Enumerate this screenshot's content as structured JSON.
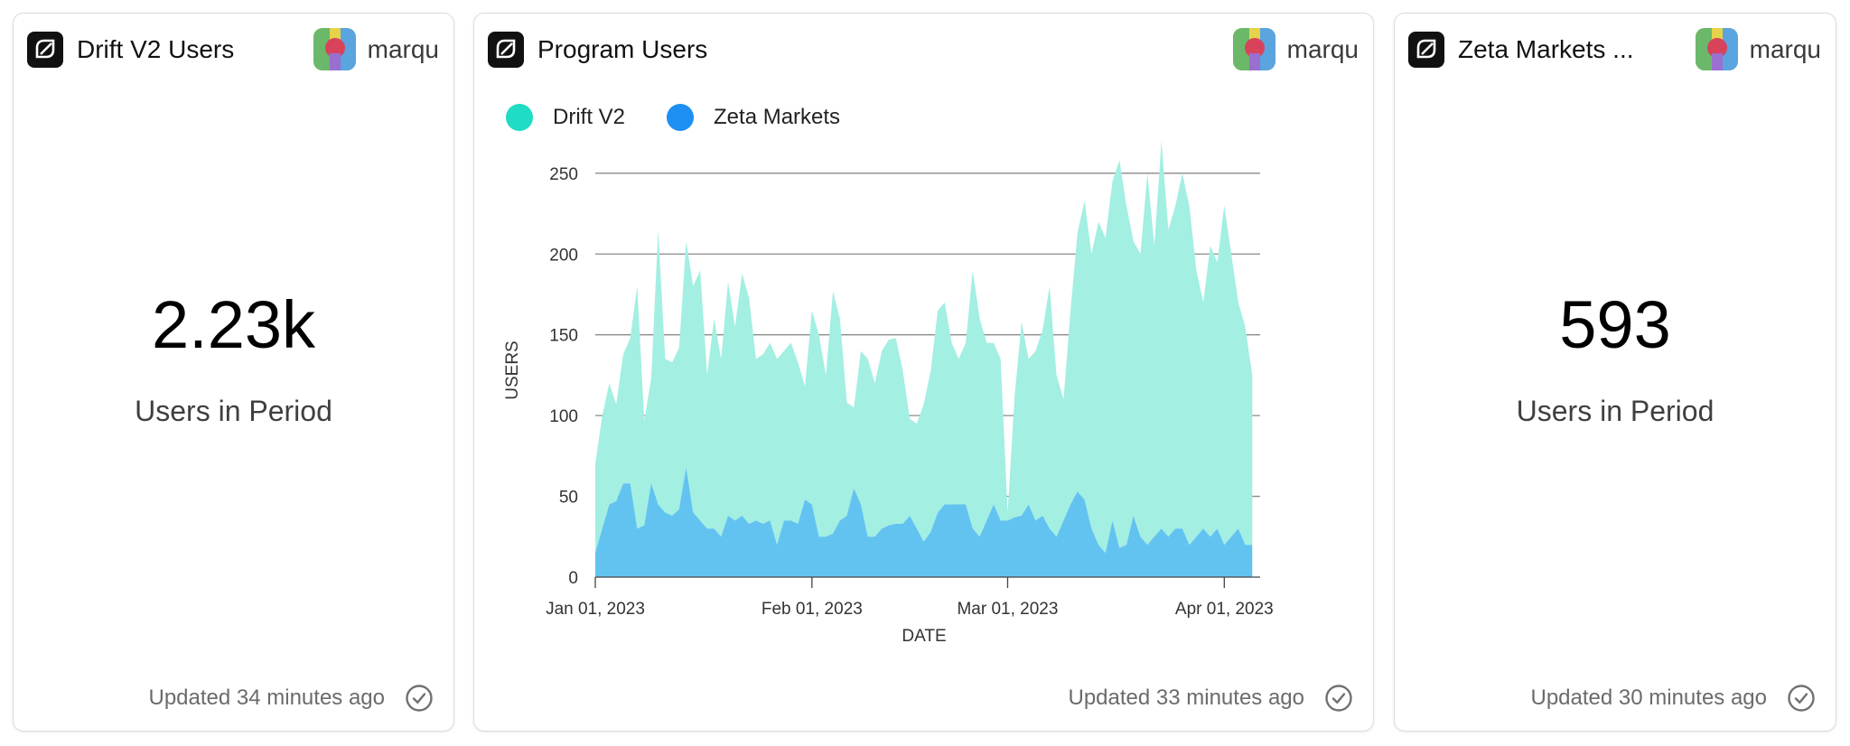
{
  "cards": [
    {
      "title": "Drift V2 Users",
      "author": "marqu",
      "value": "2.23k",
      "caption": "Users in Period",
      "updated": "Updated 34 minutes ago"
    },
    {
      "title": "Program Users",
      "author": "marqu",
      "updated": "Updated 33 minutes ago"
    },
    {
      "title": "Zeta Markets ...",
      "author": "marqu",
      "value": "593",
      "caption": "Users in Period",
      "updated": "Updated 30 minutes ago"
    }
  ],
  "chart_data": {
    "type": "area",
    "stacked": true,
    "title": "Program Users",
    "xlabel": "DATE",
    "ylabel": "USERS",
    "ylim": [
      0,
      265
    ],
    "yticks": [
      0,
      50,
      100,
      150,
      200,
      250
    ],
    "xlim": [
      "2023-01-01",
      "2023-04-06"
    ],
    "xticks": [
      {
        "date": "2023-01-01",
        "label": "Jan 01, 2023"
      },
      {
        "date": "2023-02-01",
        "label": "Feb 01, 2023"
      },
      {
        "date": "2023-03-01",
        "label": "Mar 01, 2023"
      },
      {
        "date": "2023-04-01",
        "label": "Apr 01, 2023"
      }
    ],
    "grid": true,
    "legend_position": "top-left",
    "series": [
      {
        "name": "Drift V2",
        "color": "#a3efe2",
        "legend_color": "#1fdcc4",
        "values": [
          {
            "x": "2023-01-01",
            "y": 55
          },
          {
            "x": "2023-01-02",
            "y": 70
          },
          {
            "x": "2023-01-03",
            "y": 75
          },
          {
            "x": "2023-01-04",
            "y": 60
          },
          {
            "x": "2023-01-05",
            "y": 80
          },
          {
            "x": "2023-01-06",
            "y": 90
          },
          {
            "x": "2023-01-07",
            "y": 150
          },
          {
            "x": "2023-01-08",
            "y": 65
          },
          {
            "x": "2023-01-09",
            "y": 65
          },
          {
            "x": "2023-01-10",
            "y": 170
          },
          {
            "x": "2023-01-11",
            "y": 95
          },
          {
            "x": "2023-01-12",
            "y": 95
          },
          {
            "x": "2023-01-13",
            "y": 100
          },
          {
            "x": "2023-01-14",
            "y": 140
          },
          {
            "x": "2023-01-15",
            "y": 140
          },
          {
            "x": "2023-01-16",
            "y": 155
          },
          {
            "x": "2023-01-17",
            "y": 95
          },
          {
            "x": "2023-01-18",
            "y": 130
          },
          {
            "x": "2023-01-19",
            "y": 110
          },
          {
            "x": "2023-01-20",
            "y": 145
          },
          {
            "x": "2023-01-21",
            "y": 120
          },
          {
            "x": "2023-01-22",
            "y": 150
          },
          {
            "x": "2023-01-23",
            "y": 140
          },
          {
            "x": "2023-01-24",
            "y": 100
          },
          {
            "x": "2023-01-25",
            "y": 105
          },
          {
            "x": "2023-01-26",
            "y": 110
          },
          {
            "x": "2023-01-27",
            "y": 115
          },
          {
            "x": "2023-01-28",
            "y": 105
          },
          {
            "x": "2023-01-29",
            "y": 110
          },
          {
            "x": "2023-01-30",
            "y": 100
          },
          {
            "x": "2023-01-31",
            "y": 70
          },
          {
            "x": "2023-02-01",
            "y": 120
          },
          {
            "x": "2023-02-02",
            "y": 125
          },
          {
            "x": "2023-02-03",
            "y": 100
          },
          {
            "x": "2023-02-04",
            "y": 150
          },
          {
            "x": "2023-02-05",
            "y": 125
          },
          {
            "x": "2023-02-06",
            "y": 70
          },
          {
            "x": "2023-02-07",
            "y": 50
          },
          {
            "x": "2023-02-08",
            "y": 95
          },
          {
            "x": "2023-02-09",
            "y": 110
          },
          {
            "x": "2023-02-10",
            "y": 95
          },
          {
            "x": "2023-02-11",
            "y": 110
          },
          {
            "x": "2023-02-12",
            "y": 115
          },
          {
            "x": "2023-02-13",
            "y": 115
          },
          {
            "x": "2023-02-14",
            "y": 95
          },
          {
            "x": "2023-02-15",
            "y": 60
          },
          {
            "x": "2023-02-16",
            "y": 65
          },
          {
            "x": "2023-02-17",
            "y": 85
          },
          {
            "x": "2023-02-18",
            "y": 100
          },
          {
            "x": "2023-02-19",
            "y": 125
          },
          {
            "x": "2023-02-20",
            "y": 125
          },
          {
            "x": "2023-02-21",
            "y": 100
          },
          {
            "x": "2023-02-22",
            "y": 90
          },
          {
            "x": "2023-02-23",
            "y": 100
          },
          {
            "x": "2023-02-24",
            "y": 160
          },
          {
            "x": "2023-02-25",
            "y": 135
          },
          {
            "x": "2023-02-26",
            "y": 110
          },
          {
            "x": "2023-02-27",
            "y": 100
          },
          {
            "x": "2023-02-28",
            "y": 100
          },
          {
            "x": "2023-03-01",
            "y": 5
          },
          {
            "x": "2023-03-02",
            "y": 75
          },
          {
            "x": "2023-03-03",
            "y": 120
          },
          {
            "x": "2023-03-04",
            "y": 90
          },
          {
            "x": "2023-03-05",
            "y": 105
          },
          {
            "x": "2023-03-06",
            "y": 115
          },
          {
            "x": "2023-03-07",
            "y": 150
          },
          {
            "x": "2023-03-08",
            "y": 100
          },
          {
            "x": "2023-03-09",
            "y": 75
          },
          {
            "x": "2023-03-10",
            "y": 120
          },
          {
            "x": "2023-03-11",
            "y": 160
          },
          {
            "x": "2023-03-12",
            "y": 185
          },
          {
            "x": "2023-03-13",
            "y": 170
          },
          {
            "x": "2023-03-14",
            "y": 200
          },
          {
            "x": "2023-03-15",
            "y": 195
          },
          {
            "x": "2023-03-16",
            "y": 210
          },
          {
            "x": "2023-03-17",
            "y": 240
          },
          {
            "x": "2023-03-18",
            "y": 210
          },
          {
            "x": "2023-03-19",
            "y": 170
          },
          {
            "x": "2023-03-20",
            "y": 175
          },
          {
            "x": "2023-03-21",
            "y": 230
          },
          {
            "x": "2023-03-22",
            "y": 180
          },
          {
            "x": "2023-03-23",
            "y": 240
          },
          {
            "x": "2023-03-24",
            "y": 190
          },
          {
            "x": "2023-03-25",
            "y": 200
          },
          {
            "x": "2023-03-26",
            "y": 220
          },
          {
            "x": "2023-03-27",
            "y": 210
          },
          {
            "x": "2023-03-28",
            "y": 165
          },
          {
            "x": "2023-03-29",
            "y": 140
          },
          {
            "x": "2023-03-30",
            "y": 180
          },
          {
            "x": "2023-03-31",
            "y": 165
          },
          {
            "x": "2023-04-01",
            "y": 210
          },
          {
            "x": "2023-04-02",
            "y": 175
          },
          {
            "x": "2023-04-03",
            "y": 140
          },
          {
            "x": "2023-04-04",
            "y": 135
          },
          {
            "x": "2023-04-05",
            "y": 105
          }
        ]
      },
      {
        "name": "Zeta Markets",
        "color": "#63c3f0",
        "legend_color": "#1e8ff2",
        "values": [
          {
            "x": "2023-01-01",
            "y": 15
          },
          {
            "x": "2023-01-02",
            "y": 30
          },
          {
            "x": "2023-01-03",
            "y": 45
          },
          {
            "x": "2023-01-04",
            "y": 47
          },
          {
            "x": "2023-01-05",
            "y": 58
          },
          {
            "x": "2023-01-06",
            "y": 58
          },
          {
            "x": "2023-01-07",
            "y": 30
          },
          {
            "x": "2023-01-08",
            "y": 32
          },
          {
            "x": "2023-01-09",
            "y": 58
          },
          {
            "x": "2023-01-10",
            "y": 45
          },
          {
            "x": "2023-01-11",
            "y": 40
          },
          {
            "x": "2023-01-12",
            "y": 38
          },
          {
            "x": "2023-01-13",
            "y": 42
          },
          {
            "x": "2023-01-14",
            "y": 68
          },
          {
            "x": "2023-01-15",
            "y": 40
          },
          {
            "x": "2023-01-16",
            "y": 35
          },
          {
            "x": "2023-01-17",
            "y": 30
          },
          {
            "x": "2023-01-18",
            "y": 30
          },
          {
            "x": "2023-01-19",
            "y": 25
          },
          {
            "x": "2023-01-20",
            "y": 38
          },
          {
            "x": "2023-01-21",
            "y": 35
          },
          {
            "x": "2023-01-22",
            "y": 38
          },
          {
            "x": "2023-01-23",
            "y": 33
          },
          {
            "x": "2023-01-24",
            "y": 35
          },
          {
            "x": "2023-01-25",
            "y": 33
          },
          {
            "x": "2023-01-26",
            "y": 35
          },
          {
            "x": "2023-01-27",
            "y": 20
          },
          {
            "x": "2023-01-28",
            "y": 35
          },
          {
            "x": "2023-01-29",
            "y": 35
          },
          {
            "x": "2023-01-30",
            "y": 33
          },
          {
            "x": "2023-01-31",
            "y": 48
          },
          {
            "x": "2023-02-01",
            "y": 45
          },
          {
            "x": "2023-02-02",
            "y": 25
          },
          {
            "x": "2023-02-03",
            "y": 25
          },
          {
            "x": "2023-02-04",
            "y": 27
          },
          {
            "x": "2023-02-05",
            "y": 35
          },
          {
            "x": "2023-02-06",
            "y": 38
          },
          {
            "x": "2023-02-07",
            "y": 55
          },
          {
            "x": "2023-02-08",
            "y": 45
          },
          {
            "x": "2023-02-09",
            "y": 25
          },
          {
            "x": "2023-02-10",
            "y": 25
          },
          {
            "x": "2023-02-11",
            "y": 30
          },
          {
            "x": "2023-02-12",
            "y": 32
          },
          {
            "x": "2023-02-13",
            "y": 33
          },
          {
            "x": "2023-02-14",
            "y": 33
          },
          {
            "x": "2023-02-15",
            "y": 38
          },
          {
            "x": "2023-02-16",
            "y": 30
          },
          {
            "x": "2023-02-17",
            "y": 22
          },
          {
            "x": "2023-02-18",
            "y": 28
          },
          {
            "x": "2023-02-19",
            "y": 40
          },
          {
            "x": "2023-02-20",
            "y": 45
          },
          {
            "x": "2023-02-21",
            "y": 45
          },
          {
            "x": "2023-02-22",
            "y": 45
          },
          {
            "x": "2023-02-23",
            "y": 45
          },
          {
            "x": "2023-02-24",
            "y": 30
          },
          {
            "x": "2023-02-25",
            "y": 25
          },
          {
            "x": "2023-02-26",
            "y": 35
          },
          {
            "x": "2023-02-27",
            "y": 45
          },
          {
            "x": "2023-02-28",
            "y": 35
          },
          {
            "x": "2023-03-01",
            "y": 35
          },
          {
            "x": "2023-03-02",
            "y": 37
          },
          {
            "x": "2023-03-03",
            "y": 38
          },
          {
            "x": "2023-03-04",
            "y": 45
          },
          {
            "x": "2023-03-05",
            "y": 35
          },
          {
            "x": "2023-03-06",
            "y": 38
          },
          {
            "x": "2023-03-07",
            "y": 30
          },
          {
            "x": "2023-03-08",
            "y": 25
          },
          {
            "x": "2023-03-09",
            "y": 35
          },
          {
            "x": "2023-03-10",
            "y": 45
          },
          {
            "x": "2023-03-11",
            "y": 53
          },
          {
            "x": "2023-03-12",
            "y": 48
          },
          {
            "x": "2023-03-13",
            "y": 30
          },
          {
            "x": "2023-03-14",
            "y": 20
          },
          {
            "x": "2023-03-15",
            "y": 15
          },
          {
            "x": "2023-03-16",
            "y": 35
          },
          {
            "x": "2023-03-17",
            "y": 18
          },
          {
            "x": "2023-03-18",
            "y": 20
          },
          {
            "x": "2023-03-19",
            "y": 38
          },
          {
            "x": "2023-03-20",
            "y": 25
          },
          {
            "x": "2023-03-21",
            "y": 20
          },
          {
            "x": "2023-03-22",
            "y": 25
          },
          {
            "x": "2023-03-23",
            "y": 30
          },
          {
            "x": "2023-03-24",
            "y": 25
          },
          {
            "x": "2023-03-25",
            "y": 30
          },
          {
            "x": "2023-03-26",
            "y": 30
          },
          {
            "x": "2023-03-27",
            "y": 20
          },
          {
            "x": "2023-03-28",
            "y": 25
          },
          {
            "x": "2023-03-29",
            "y": 30
          },
          {
            "x": "2023-03-30",
            "y": 25
          },
          {
            "x": "2023-03-31",
            "y": 30
          },
          {
            "x": "2023-04-01",
            "y": 20
          },
          {
            "x": "2023-04-02",
            "y": 25
          },
          {
            "x": "2023-04-03",
            "y": 30
          },
          {
            "x": "2023-04-04",
            "y": 20
          },
          {
            "x": "2023-04-05",
            "y": 20
          }
        ]
      }
    ]
  }
}
